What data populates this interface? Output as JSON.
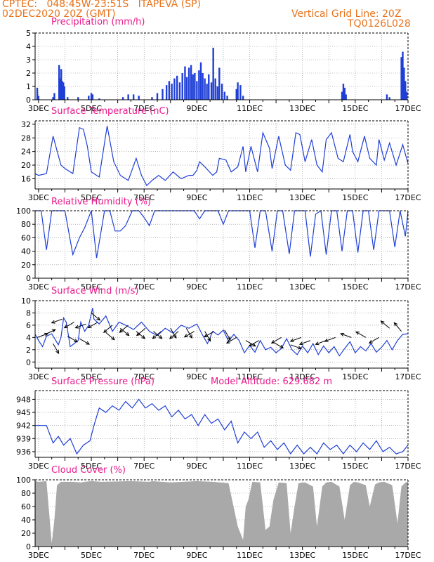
{
  "header": {
    "line1_left": "CPTEC:   048:45W-23:51S   ITAPEVA (SP)",
    "line2_left": "02DEC2020 20Z (GMT)",
    "line1_right": "Vertical Grid Line: 20Z",
    "line2_right": "TQ0126L028"
  },
  "colors": {
    "header": "#e8731c",
    "title": "#e8198b",
    "line": "#1f3fd6",
    "bar": "#1f3fd6",
    "cloud": "#a9a9a9",
    "wind_arrow": "#000000"
  },
  "x_ticks": [
    "3DEC",
    "5DEC",
    "7DEC",
    "9DEC",
    "11DEC",
    "13DEC",
    "15DEC",
    "17DEC"
  ],
  "chart_data": [
    {
      "id": "precip",
      "type": "bar",
      "title": "Precipitation (mm/h)",
      "x_days": [
        2.87,
        17.0
      ],
      "ylim": [
        0,
        5
      ],
      "yticks": [
        "0",
        "1",
        "2",
        "3",
        "4",
        "5"
      ],
      "bars": [
        {
          "day": 2.95,
          "v": 0.9
        },
        {
          "day": 3.0,
          "v": 0.3
        },
        {
          "day": 3.55,
          "v": 0.2
        },
        {
          "day": 3.6,
          "v": 0.5
        },
        {
          "day": 3.78,
          "v": 2.6
        },
        {
          "day": 3.82,
          "v": 1.6
        },
        {
          "day": 3.86,
          "v": 2.3
        },
        {
          "day": 3.9,
          "v": 1.4
        },
        {
          "day": 3.94,
          "v": 1.3
        },
        {
          "day": 3.98,
          "v": 1.0
        },
        {
          "day": 4.1,
          "v": 0.2
        },
        {
          "day": 4.5,
          "v": 0.2
        },
        {
          "day": 4.9,
          "v": 0.3
        },
        {
          "day": 5.0,
          "v": 0.5
        },
        {
          "day": 5.05,
          "v": 0.4
        },
        {
          "day": 5.3,
          "v": 0.1
        },
        {
          "day": 6.2,
          "v": 0.2
        },
        {
          "day": 6.4,
          "v": 0.4
        },
        {
          "day": 6.6,
          "v": 0.4
        },
        {
          "day": 6.8,
          "v": 0.3
        },
        {
          "day": 7.3,
          "v": 0.2
        },
        {
          "day": 7.5,
          "v": 0.5
        },
        {
          "day": 7.7,
          "v": 0.8
        },
        {
          "day": 7.85,
          "v": 1.1
        },
        {
          "day": 7.95,
          "v": 1.4
        },
        {
          "day": 8.05,
          "v": 1.2
        },
        {
          "day": 8.15,
          "v": 1.6
        },
        {
          "day": 8.25,
          "v": 1.8
        },
        {
          "day": 8.35,
          "v": 1.3
        },
        {
          "day": 8.45,
          "v": 2.0
        },
        {
          "day": 8.55,
          "v": 2.5
        },
        {
          "day": 8.62,
          "v": 1.7
        },
        {
          "day": 8.7,
          "v": 2.4
        },
        {
          "day": 8.78,
          "v": 2.6
        },
        {
          "day": 8.85,
          "v": 1.9
        },
        {
          "day": 8.92,
          "v": 2.0
        },
        {
          "day": 9.0,
          "v": 1.4
        },
        {
          "day": 9.08,
          "v": 2.2
        },
        {
          "day": 9.15,
          "v": 2.8
        },
        {
          "day": 9.22,
          "v": 2.0
        },
        {
          "day": 9.3,
          "v": 1.6
        },
        {
          "day": 9.38,
          "v": 1.2
        },
        {
          "day": 9.45,
          "v": 1.9
        },
        {
          "day": 9.55,
          "v": 1.3
        },
        {
          "day": 9.62,
          "v": 3.9
        },
        {
          "day": 9.7,
          "v": 1.6
        },
        {
          "day": 9.78,
          "v": 1.0
        },
        {
          "day": 9.85,
          "v": 2.4
        },
        {
          "day": 9.95,
          "v": 1.2
        },
        {
          "day": 10.05,
          "v": 0.6
        },
        {
          "day": 10.15,
          "v": 0.3
        },
        {
          "day": 10.5,
          "v": 0.8
        },
        {
          "day": 10.55,
          "v": 1.3
        },
        {
          "day": 10.65,
          "v": 1.1
        },
        {
          "day": 10.75,
          "v": 0.3
        },
        {
          "day": 14.5,
          "v": 0.6
        },
        {
          "day": 14.55,
          "v": 1.2
        },
        {
          "day": 14.6,
          "v": 0.9
        },
        {
          "day": 14.65,
          "v": 0.4
        },
        {
          "day": 16.2,
          "v": 0.4
        },
        {
          "day": 16.3,
          "v": 0.2
        },
        {
          "day": 16.75,
          "v": 3.2
        },
        {
          "day": 16.8,
          "v": 3.6
        },
        {
          "day": 16.85,
          "v": 2.4
        },
        {
          "day": 16.9,
          "v": 1.4
        },
        {
          "day": 16.95,
          "v": 0.6
        }
      ]
    },
    {
      "id": "temp",
      "type": "line",
      "title": "Surface Temperature (nC)",
      "ylim": [
        13,
        33
      ],
      "yticks": [
        16,
        20,
        24,
        28,
        32
      ],
      "x": [
        2.87,
        3.0,
        3.3,
        3.55,
        3.85,
        4.0,
        4.3,
        4.55,
        4.7,
        4.85,
        5.0,
        5.3,
        5.6,
        5.85,
        6.1,
        6.4,
        6.7,
        6.9,
        7.1,
        7.3,
        7.55,
        7.8,
        8.1,
        8.4,
        8.7,
        8.85,
        9.0,
        9.1,
        9.3,
        9.6,
        9.75,
        9.85,
        10.1,
        10.3,
        10.55,
        10.75,
        10.85,
        11.05,
        11.3,
        11.5,
        11.75,
        11.85,
        12.1,
        12.35,
        12.55,
        12.75,
        12.9,
        13.1,
        13.35,
        13.55,
        13.75,
        13.9,
        14.1,
        14.35,
        14.55,
        14.8,
        14.9,
        15.1,
        15.35,
        15.55,
        15.8,
        15.9,
        16.1,
        16.3,
        16.55,
        16.8,
        17.0
      ],
      "y": [
        17.5,
        17.0,
        17.5,
        28.5,
        20.0,
        19.0,
        17.5,
        31.0,
        30.5,
        25.5,
        18.0,
        16.5,
        31.5,
        21.0,
        17.0,
        15.5,
        22.0,
        17.0,
        14.0,
        15.5,
        17.0,
        15.5,
        18.0,
        16.0,
        17.0,
        17.0,
        18.5,
        21.0,
        19.5,
        17.0,
        18.0,
        22.0,
        21.5,
        18.0,
        19.5,
        25.5,
        18.0,
        25.5,
        18.0,
        29.5,
        25.0,
        19.0,
        28.5,
        20.0,
        18.5,
        29.5,
        29.0,
        21.0,
        27.5,
        20.0,
        18.0,
        27.5,
        29.5,
        22.0,
        21.0,
        29.0,
        24.0,
        21.0,
        28.5,
        22.0,
        20.0,
        27.5,
        21.5,
        26.5,
        20.0,
        26.0,
        20.5
      ]
    },
    {
      "id": "rh",
      "type": "line",
      "title": "Relative Humidity (%)",
      "ylim": [
        0,
        100
      ],
      "yticks": [
        0,
        20,
        40,
        60,
        80,
        100
      ],
      "x": [
        2.87,
        3.1,
        3.3,
        3.5,
        3.7,
        4.0,
        4.3,
        4.55,
        4.75,
        5.0,
        5.2,
        5.5,
        5.7,
        5.9,
        6.1,
        6.3,
        6.55,
        6.8,
        7.0,
        7.2,
        7.4,
        7.6,
        8.0,
        8.5,
        8.7,
        8.9,
        9.1,
        9.3,
        9.6,
        9.8,
        10.0,
        10.2,
        10.5,
        10.7,
        10.85,
        11.0,
        11.2,
        11.4,
        11.6,
        11.85,
        12.05,
        12.25,
        12.5,
        12.7,
        12.9,
        13.1,
        13.3,
        13.5,
        13.7,
        13.9,
        14.1,
        14.3,
        14.5,
        14.7,
        14.9,
        15.1,
        15.3,
        15.5,
        15.7,
        15.9,
        16.1,
        16.3,
        16.5,
        16.7,
        16.9,
        17.0
      ],
      "y": [
        100,
        100,
        42,
        100,
        100,
        100,
        35,
        60,
        75,
        100,
        30,
        100,
        100,
        70,
        70,
        78,
        100,
        100,
        90,
        78,
        100,
        100,
        100,
        100,
        100,
        100,
        88,
        100,
        100,
        100,
        80,
        100,
        100,
        100,
        100,
        100,
        45,
        100,
        100,
        40,
        100,
        100,
        36,
        100,
        100,
        100,
        32,
        95,
        100,
        35,
        100,
        100,
        40,
        100,
        100,
        38,
        100,
        100,
        42,
        100,
        100,
        100,
        46,
        100,
        62,
        100
      ]
    },
    {
      "id": "wind",
      "type": "line",
      "title": "Surface Wind (m/s)",
      "ylim": [
        -1,
        10
      ],
      "yticks": [
        0,
        2,
        4,
        6,
        8,
        10
      ],
      "x": [
        2.87,
        3.0,
        3.15,
        3.3,
        3.5,
        3.75,
        3.85,
        3.95,
        4.05,
        4.2,
        4.35,
        4.5,
        4.6,
        4.75,
        4.9,
        5.05,
        5.1,
        5.3,
        5.55,
        5.8,
        6.05,
        6.3,
        6.6,
        6.9,
        7.2,
        7.5,
        7.8,
        8.1,
        8.4,
        8.7,
        9.0,
        9.2,
        9.4,
        9.6,
        9.8,
        10.0,
        10.2,
        10.4,
        10.6,
        10.8,
        11.0,
        11.2,
        11.4,
        11.6,
        11.8,
        12.0,
        12.2,
        12.4,
        12.6,
        12.8,
        13.0,
        13.2,
        13.4,
        13.6,
        13.8,
        14.0,
        14.2,
        14.4,
        14.6,
        14.8,
        15.0,
        15.2,
        15.4,
        15.6,
        15.8,
        16.0,
        16.2,
        16.4,
        16.6,
        16.8,
        17.0
      ],
      "y": [
        4.5,
        3.5,
        2.5,
        4.2,
        4.6,
        2.8,
        4.0,
        7.2,
        6.5,
        2.5,
        3.0,
        3.5,
        6.5,
        5.0,
        6.0,
        8.8,
        7.0,
        6.2,
        7.5,
        5.0,
        6.5,
        6.0,
        5.3,
        6.5,
        5.0,
        4.3,
        5.5,
        4.7,
        6.0,
        5.5,
        6.2,
        4.5,
        3.0,
        5.0,
        4.4,
        5.2,
        3.4,
        4.5,
        3.5,
        1.5,
        2.7,
        1.6,
        3.5,
        2.0,
        2.4,
        1.5,
        2.2,
        3.8,
        2.0,
        1.2,
        2.6,
        1.5,
        3.0,
        1.2,
        2.6,
        1.5,
        2.5,
        1.0,
        2.2,
        3.3,
        1.5,
        2.5,
        1.8,
        3.0,
        1.6,
        2.4,
        3.5,
        2.0,
        3.5,
        4.5,
        4.6
      ]
    },
    {
      "id": "pressure",
      "type": "line",
      "title": "Surface Pressure (hPa)",
      "annotation": "Model Altitude: 629.682 m",
      "ylim": [
        934.7,
        950
      ],
      "yticks": [
        936,
        939,
        942,
        945,
        948
      ],
      "x": [
        2.87,
        3.3,
        3.55,
        3.75,
        3.95,
        4.2,
        4.45,
        4.7,
        4.95,
        5.1,
        5.3,
        5.55,
        5.8,
        6.05,
        6.3,
        6.55,
        6.8,
        7.05,
        7.3,
        7.55,
        7.8,
        8.05,
        8.3,
        8.55,
        8.8,
        9.05,
        9.3,
        9.55,
        9.8,
        10.05,
        10.3,
        10.55,
        10.8,
        11.05,
        11.3,
        11.55,
        11.8,
        12.05,
        12.3,
        12.55,
        12.8,
        13.05,
        13.3,
        13.55,
        13.8,
        14.05,
        14.3,
        14.55,
        14.8,
        15.05,
        15.3,
        15.55,
        15.8,
        16.05,
        16.3,
        16.55,
        16.8,
        17.0
      ],
      "y": [
        942,
        942,
        938,
        939.5,
        937.5,
        939,
        935.5,
        937.5,
        938.5,
        942,
        946,
        945,
        946.5,
        945.5,
        947.5,
        946,
        948,
        946,
        947,
        945.5,
        946.5,
        944,
        945.5,
        943.5,
        944.5,
        942,
        944.5,
        942.5,
        943.5,
        941,
        943,
        938,
        940.5,
        939,
        940.5,
        937,
        938.5,
        936.5,
        938,
        935.5,
        937.5,
        935.5,
        937,
        935.5,
        938,
        936.5,
        937.5,
        935.5,
        937.5,
        936,
        938,
        936.5,
        938.5,
        936,
        937,
        935.5,
        936,
        937.5
      ]
    },
    {
      "id": "cloud",
      "type": "area",
      "title": "Cloud Cover (%)",
      "ylim": [
        0,
        100
      ],
      "yticks": [
        0,
        20,
        40,
        60,
        80,
        100
      ],
      "x": [
        2.87,
        3.0,
        3.3,
        3.5,
        3.6,
        3.7,
        3.85,
        4.3,
        4.6,
        4.75,
        5.0,
        5.4,
        6.5,
        7.2,
        7.3,
        8.0,
        9.0,
        9.6,
        10.2,
        10.55,
        10.75,
        10.85,
        10.95,
        11.1,
        11.4,
        11.6,
        11.75,
        11.9,
        12.1,
        12.4,
        12.55,
        12.7,
        12.85,
        13.1,
        13.4,
        13.55,
        13.75,
        13.9,
        14.1,
        14.4,
        14.6,
        14.8,
        14.95,
        15.1,
        15.4,
        15.55,
        15.75,
        15.9,
        16.1,
        16.4,
        16.6,
        16.75,
        16.9,
        17.0
      ],
      "y": [
        98,
        97,
        98,
        5,
        40,
        92,
        97,
        97,
        96,
        97,
        98,
        97,
        98,
        97,
        98,
        96,
        98,
        97,
        95,
        30,
        10,
        60,
        70,
        97,
        96,
        25,
        30,
        70,
        96,
        95,
        20,
        60,
        95,
        96,
        90,
        30,
        90,
        96,
        97,
        90,
        40,
        92,
        97,
        96,
        92,
        60,
        93,
        96,
        97,
        92,
        35,
        90,
        96,
        97
      ]
    }
  ],
  "wind_vectors": [
    {
      "day": 2.95,
      "v": 4.0,
      "dir": 20
    },
    {
      "day": 3.25,
      "v": 4.5,
      "dir": 25
    },
    {
      "day": 3.55,
      "v": 3.0,
      "dir": 300
    },
    {
      "day": 3.9,
      "v": 7.0,
      "dir": 200
    },
    {
      "day": 4.1,
      "v": 4.2,
      "dir": 330
    },
    {
      "day": 4.35,
      "v": 6.5,
      "dir": 210
    },
    {
      "day": 4.55,
      "v": 3.8,
      "dir": 330
    },
    {
      "day": 4.8,
      "v": 6.2,
      "dir": 200
    },
    {
      "day": 5.0,
      "v": 8.0,
      "dir": 320
    },
    {
      "day": 5.25,
      "v": 6.5,
      "dir": 210
    },
    {
      "day": 5.55,
      "v": 4.8,
      "dir": 320
    },
    {
      "day": 5.8,
      "v": 6.0,
      "dir": 220
    },
    {
      "day": 6.1,
      "v": 5.5,
      "dir": 320
    },
    {
      "day": 6.4,
      "v": 6.0,
      "dir": 220
    },
    {
      "day": 6.7,
      "v": 5.0,
      "dir": 320
    },
    {
      "day": 7.05,
      "v": 5.5,
      "dir": 220
    },
    {
      "day": 7.35,
      "v": 5.0,
      "dir": 320
    },
    {
      "day": 7.65,
      "v": 5.0,
      "dir": 220
    },
    {
      "day": 8.0,
      "v": 5.5,
      "dir": 300
    },
    {
      "day": 8.3,
      "v": 5.0,
      "dir": 220
    },
    {
      "day": 8.6,
      "v": 5.5,
      "dir": 300
    },
    {
      "day": 8.9,
      "v": 5.0,
      "dir": 210
    },
    {
      "day": 9.3,
      "v": 5.0,
      "dir": 300
    },
    {
      "day": 9.65,
      "v": 5.0,
      "dir": 210
    },
    {
      "day": 10.05,
      "v": 5.2,
      "dir": 300
    },
    {
      "day": 10.5,
      "v": 4.0,
      "dir": 210
    },
    {
      "day": 10.85,
      "v": 3.5,
      "dir": 330
    },
    {
      "day": 11.35,
      "v": 3.5,
      "dir": 210
    },
    {
      "day": 11.9,
      "v": 3.2,
      "dir": 330
    },
    {
      "day": 12.2,
      "v": 4.0,
      "dir": 210
    },
    {
      "day": 12.55,
      "v": 2.8,
      "dir": 340
    },
    {
      "day": 12.95,
      "v": 4.0,
      "dir": 200
    },
    {
      "day": 13.3,
      "v": 3.5,
      "dir": 200
    },
    {
      "day": 13.9,
      "v": 3.5,
      "dir": 200
    },
    {
      "day": 14.25,
      "v": 4.0,
      "dir": 200
    },
    {
      "day": 14.85,
      "v": 4.0,
      "dir": 160
    },
    {
      "day": 15.4,
      "v": 4.0,
      "dir": 150
    },
    {
      "day": 15.9,
      "v": 4.0,
      "dir": 210
    },
    {
      "day": 16.3,
      "v": 5.5,
      "dir": 140
    },
    {
      "day": 16.75,
      "v": 5.0,
      "dir": 130
    }
  ]
}
